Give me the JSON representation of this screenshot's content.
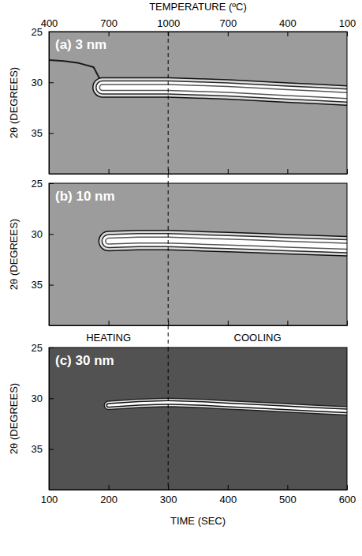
{
  "chart_data": [
    {
      "type": "line",
      "title": "(a) 3 nm",
      "ylabel": "2θ (DEGREES)",
      "x2label": "TEMPERATURE (ºC)",
      "x2ticks": [
        {
          "value": 100,
          "label": "400"
        },
        {
          "value": 200,
          "label": "700"
        },
        {
          "value": 300,
          "label": "1000"
        },
        {
          "value": 400,
          "label": "700"
        },
        {
          "value": 500,
          "label": "400"
        },
        {
          "value": 600,
          "label": "100"
        }
      ],
      "xlim": [
        100,
        600
      ],
      "xticks": [
        100,
        200,
        300,
        400,
        500,
        600
      ],
      "ylim": [
        25,
        39
      ],
      "yticks": [
        25,
        30,
        35
      ],
      "tick_labels": "y",
      "vline": 300,
      "x": [
        100,
        125,
        150,
        175,
        190,
        200,
        250,
        300,
        350,
        400,
        450,
        500,
        550,
        600
      ],
      "series": [
        {
          "type": "line",
          "color": "#1a1a1a",
          "values": [
            27.8,
            27.9,
            28.1,
            28.5,
            30.2,
            null,
            null,
            null,
            null,
            null,
            null,
            null,
            null,
            null
          ]
        },
        {
          "type": "contour",
          "color": "#ffffff",
          "values": [
            null,
            null,
            null,
            null,
            30.5,
            30.5,
            30.5,
            30.5,
            30.6,
            30.7,
            30.85,
            31.0,
            31.15,
            31.3
          ]
        }
      ]
    },
    {
      "type": "line",
      "title": "(b) 10 nm",
      "ylabel": "2θ (DEGREES)",
      "xlim": [
        100,
        600
      ],
      "xticks": [
        100,
        200,
        300,
        400,
        500,
        600
      ],
      "ylim": [
        25,
        39
      ],
      "yticks": [
        25,
        30,
        35
      ],
      "tick_labels": "y",
      "vline": 300,
      "x": [
        100,
        125,
        150,
        175,
        190,
        200,
        250,
        300,
        350,
        400,
        450,
        500,
        550,
        600
      ],
      "series": [
        {
          "type": "contour",
          "color": "#ffffff",
          "values": [
            null,
            null,
            null,
            null,
            null,
            30.7,
            30.6,
            30.6,
            30.7,
            30.8,
            30.9,
            31.0,
            31.1,
            31.2
          ]
        }
      ]
    },
    {
      "type": "line",
      "title": "(c) 30 nm",
      "ylabel": "2θ (DEGREES)",
      "xlabel": "TIME (SEC)",
      "annotations": [
        "HEATING",
        "COOLING"
      ],
      "xlim": [
        100,
        600
      ],
      "xticks": [
        100,
        200,
        300,
        400,
        500,
        600
      ],
      "ylim": [
        25,
        39
      ],
      "yticks": [
        25,
        30,
        35
      ],
      "vline": 300,
      "x": [
        100,
        125,
        150,
        175,
        190,
        200,
        250,
        300,
        350,
        400,
        450,
        500,
        550,
        600
      ],
      "series": [
        {
          "type": "contour",
          "color": "#ffffff",
          "values": [
            null,
            null,
            null,
            null,
            null,
            30.7,
            30.5,
            30.4,
            30.5,
            30.65,
            30.8,
            30.95,
            31.1,
            31.25
          ]
        }
      ]
    }
  ]
}
